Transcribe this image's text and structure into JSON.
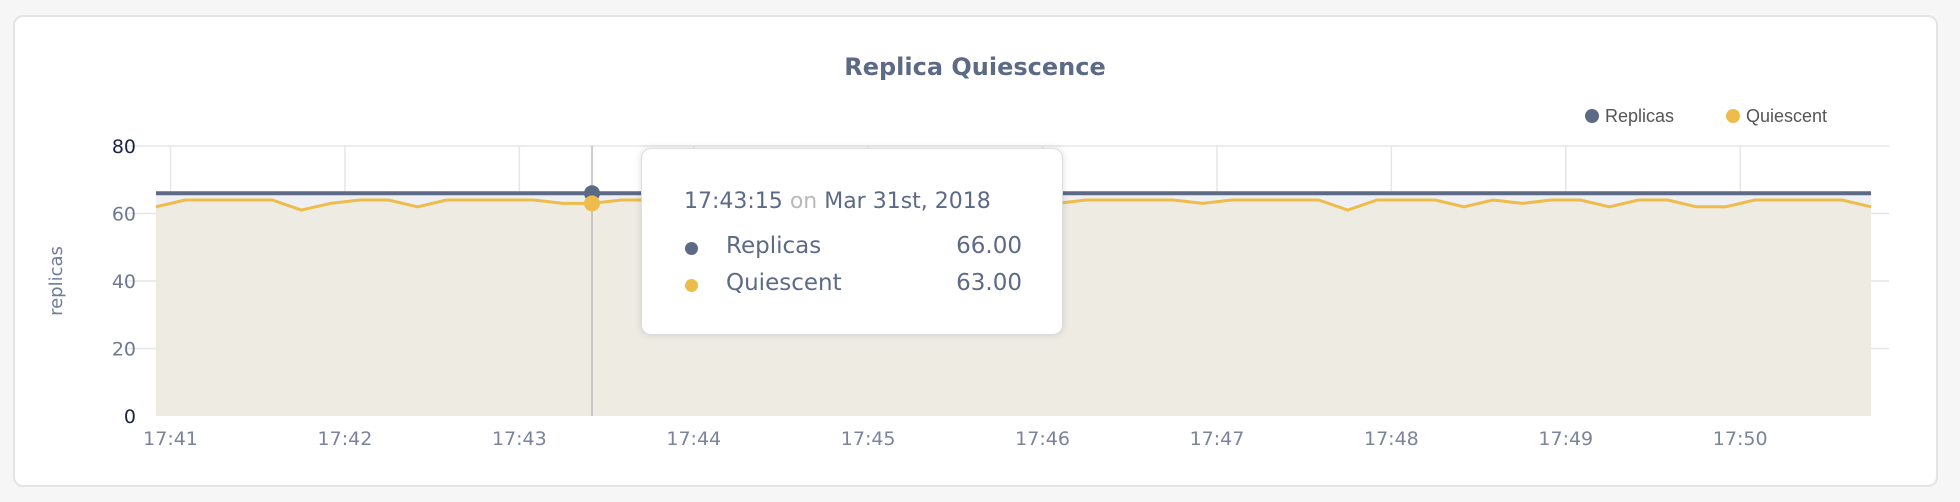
{
  "chart_data": {
    "type": "line",
    "title": "Replica Quiescence",
    "ylabel": "replicas",
    "xlabel": "",
    "ylim": [
      0,
      80
    ],
    "yticks": [
      "0",
      "20",
      "40",
      "60",
      "80"
    ],
    "xticks": [
      "17:41",
      "17:42",
      "17:43",
      "17:44",
      "17:45",
      "17:46",
      "17:47",
      "17:48",
      "17:49",
      "17:50"
    ],
    "x_start": "17:40:55",
    "x_step_seconds": 10,
    "grid": true,
    "legend_position": "top-right",
    "series": [
      {
        "name": "Replicas",
        "color": "#5d6a86",
        "values": [
          66,
          66,
          66,
          66,
          66,
          66,
          66,
          66,
          66,
          66,
          66,
          66,
          66,
          66,
          66,
          66,
          66,
          66,
          66,
          66,
          66,
          66,
          66,
          66,
          66,
          66,
          66,
          66,
          66,
          66,
          66,
          66,
          66,
          66,
          66,
          66,
          66,
          66,
          66,
          66,
          66,
          66,
          66,
          66,
          66,
          66,
          66,
          66,
          66,
          66,
          66,
          66,
          66,
          66,
          66,
          66,
          66,
          66,
          66,
          66
        ]
      },
      {
        "name": "Quiescent",
        "color": "#eebc4a",
        "values": [
          62,
          64,
          64,
          64,
          64,
          61,
          63,
          64,
          64,
          62,
          64,
          64,
          64,
          64,
          63,
          63,
          64,
          64,
          64,
          64,
          64,
          64,
          63,
          64,
          64,
          64,
          64,
          64,
          64,
          64,
          66,
          63,
          64,
          64,
          64,
          64,
          63,
          64,
          64,
          64,
          64,
          61,
          64,
          64,
          64,
          62,
          64,
          63,
          64,
          64,
          62,
          64,
          64,
          62,
          62,
          64,
          64,
          64,
          64,
          62
        ]
      }
    ],
    "hover_index": 15
  },
  "tooltip": {
    "time": "17:43:15",
    "on": "on",
    "date": "Mar 31st, 2018",
    "rows": [
      {
        "name": "Replicas",
        "value": "66.00",
        "color": "#5d6a86"
      },
      {
        "name": "Quiescent",
        "value": "63.00",
        "color": "#eebc4a"
      }
    ]
  }
}
